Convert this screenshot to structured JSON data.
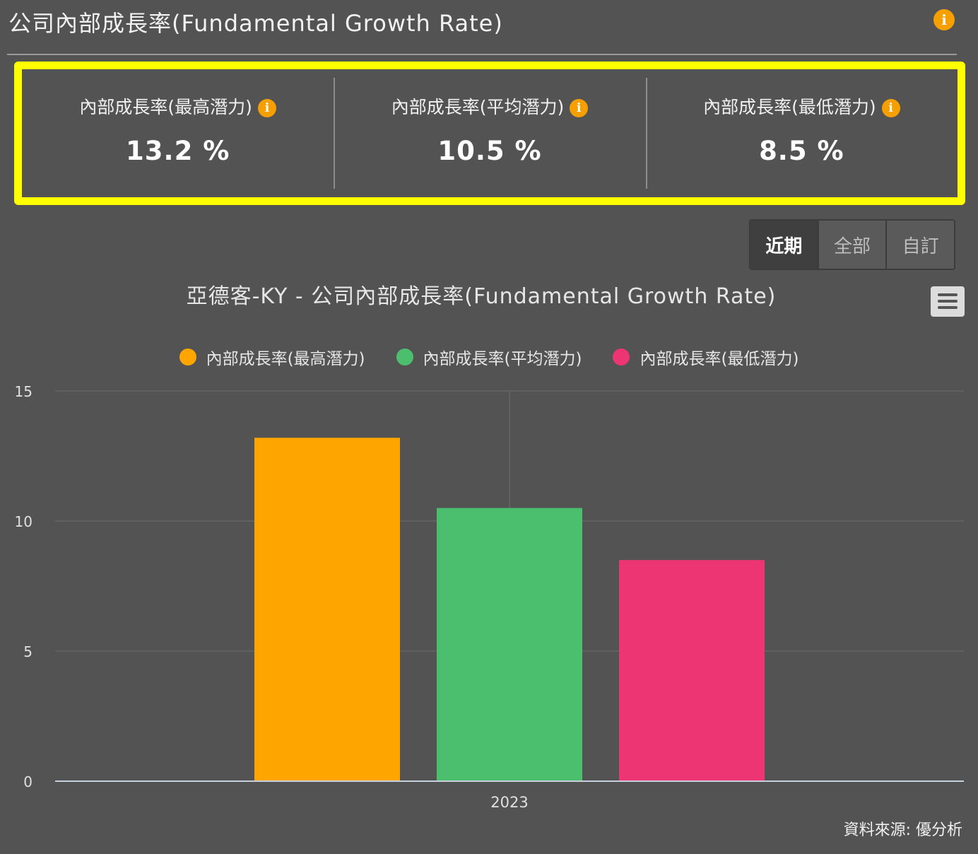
{
  "header": {
    "title": "公司內部成長率(Fundamental Growth Rate)",
    "info_icon": "info-icon"
  },
  "stats": [
    {
      "label": "內部成長率(最高潛力)",
      "value": "13.2 %"
    },
    {
      "label": "內部成長率(平均潛力)",
      "value": "10.5 %"
    },
    {
      "label": "內部成長率(最低潛力)",
      "value": "8.5 %"
    }
  ],
  "range_tabs": {
    "recent": "近期",
    "all": "全部",
    "custom": "自訂",
    "selected": "近期"
  },
  "source_note": "資料來源: 優分析",
  "colors": {
    "background": "#535353",
    "highlight": "#ffff00",
    "info": "#f5a000"
  },
  "chart_data": {
    "type": "bar",
    "title": "亞德客-KY - 公司內部成長率(Fundamental Growth Rate)",
    "xlabel": "",
    "ylabel": "",
    "categories": [
      "2023"
    ],
    "ylim": [
      0,
      15
    ],
    "yticks": [
      0,
      5,
      10,
      15
    ],
    "grid": true,
    "legend_position": "top",
    "series": [
      {
        "name": "內部成長率(最高潛力)",
        "color": "#ffa500",
        "values": [
          13.2
        ]
      },
      {
        "name": "內部成長率(平均潛力)",
        "color": "#4cbf6e",
        "values": [
          10.5
        ]
      },
      {
        "name": "內部成長率(最低潛力)",
        "color": "#ee3573",
        "values": [
          8.5
        ]
      }
    ]
  }
}
